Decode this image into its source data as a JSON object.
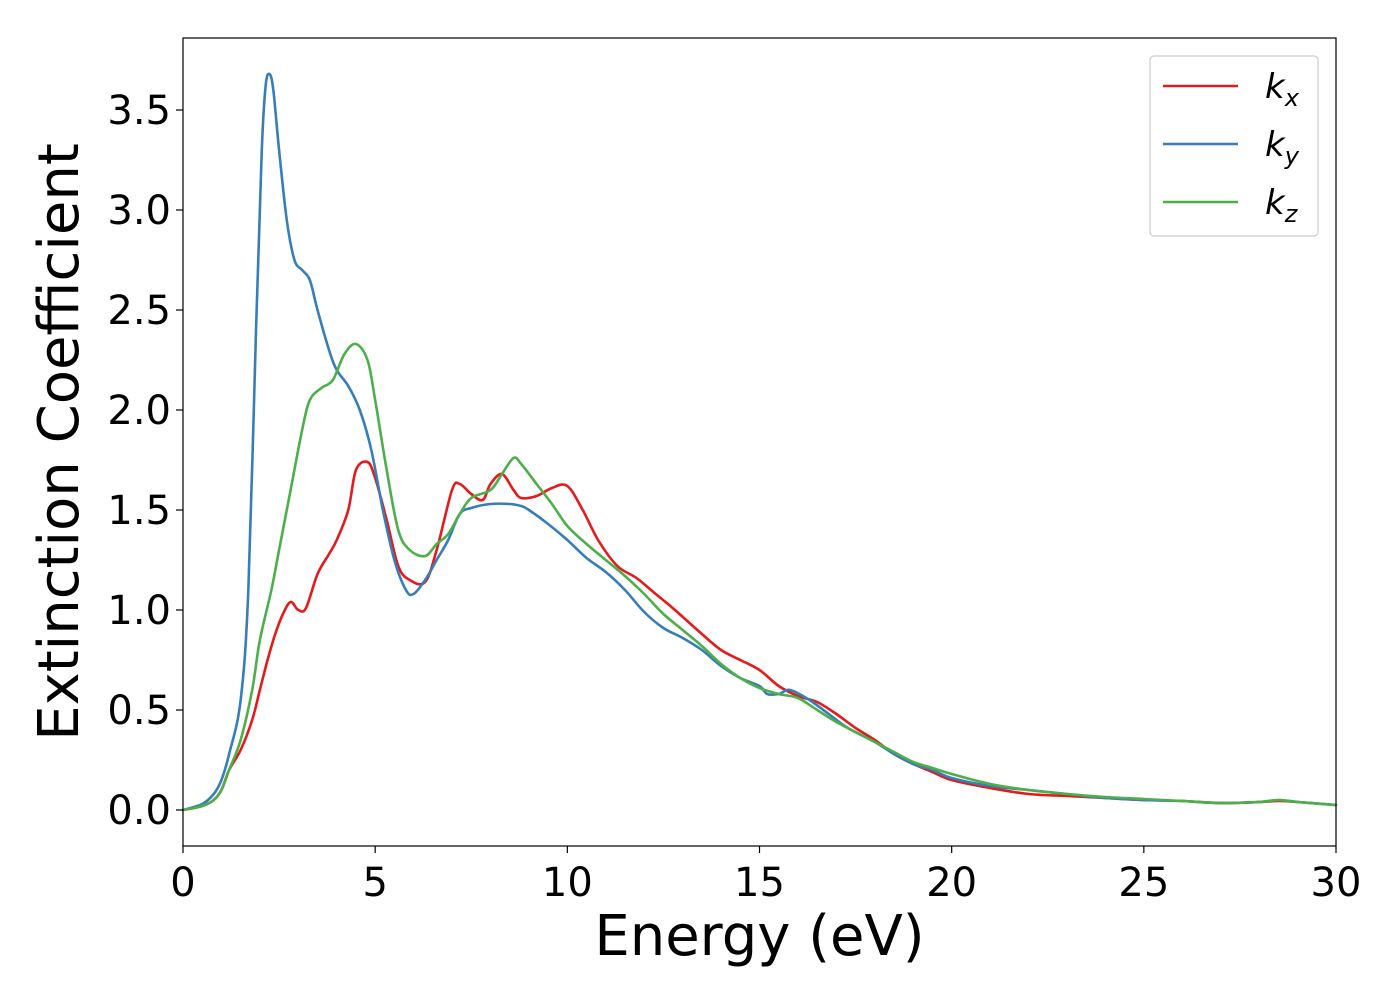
{
  "chart_data": {
    "type": "line",
    "title": "",
    "xlabel": "Energy (eV)",
    "ylabel": "Extinction Coefficient",
    "xlim": [
      0,
      30
    ],
    "ylim": [
      -0.18,
      3.86
    ],
    "xticks": [
      0,
      5,
      10,
      15,
      20,
      25,
      30
    ],
    "xtick_labels": [
      "0",
      "5",
      "10",
      "15",
      "20",
      "25",
      "30"
    ],
    "yticks": [
      0.0,
      0.5,
      1.0,
      1.5,
      2.0,
      2.5,
      3.0,
      3.5
    ],
    "ytick_labels": [
      "0.0",
      "0.5",
      "1.0",
      "1.5",
      "2.0",
      "2.5",
      "3.0",
      "3.5"
    ],
    "grid": false,
    "legend_position": "top-right",
    "series": [
      {
        "name": "k_x",
        "label_main": "k",
        "label_sub": "x",
        "color": "#e41a1c",
        "x": [
          0,
          0.5,
          0.8,
          1.0,
          1.2,
          1.5,
          1.8,
          2.0,
          2.2,
          2.4,
          2.6,
          2.8,
          3.0,
          3.2,
          3.5,
          3.8,
          4.0,
          4.3,
          4.5,
          4.8,
          5.0,
          5.3,
          5.6,
          5.9,
          6.3,
          6.6,
          7.0,
          7.2,
          7.5,
          7.8,
          8.0,
          8.3,
          8.6,
          8.8,
          9.2,
          9.6,
          10.0,
          10.4,
          10.8,
          11.3,
          11.8,
          12.3,
          12.8,
          13.5,
          14.0,
          14.5,
          15.0,
          15.5,
          16.0,
          16.5,
          17.0,
          17.5,
          18.0,
          18.5,
          19.0,
          19.5,
          20.0,
          21.0,
          22.0,
          23.0,
          24.0,
          25.0,
          26.0,
          27.0,
          28.0,
          28.5,
          29.0,
          30.0
        ],
        "y": [
          0.0,
          0.02,
          0.05,
          0.1,
          0.2,
          0.3,
          0.45,
          0.6,
          0.75,
          0.88,
          0.98,
          1.04,
          1.0,
          1.01,
          1.18,
          1.28,
          1.35,
          1.5,
          1.7,
          1.74,
          1.66,
          1.45,
          1.22,
          1.15,
          1.14,
          1.3,
          1.6,
          1.63,
          1.58,
          1.55,
          1.63,
          1.68,
          1.6,
          1.56,
          1.57,
          1.61,
          1.62,
          1.5,
          1.35,
          1.22,
          1.16,
          1.08,
          1.0,
          0.88,
          0.8,
          0.75,
          0.7,
          0.62,
          0.57,
          0.54,
          0.48,
          0.41,
          0.35,
          0.28,
          0.23,
          0.19,
          0.15,
          0.11,
          0.08,
          0.07,
          0.06,
          0.05,
          0.045,
          0.035,
          0.04,
          0.045,
          0.04,
          0.025
        ]
      },
      {
        "name": "k_y",
        "label_main": "k",
        "label_sub": "y",
        "color": "#377eb8",
        "x": [
          0,
          0.5,
          0.8,
          1.0,
          1.2,
          1.5,
          1.7,
          1.9,
          2.05,
          2.15,
          2.25,
          2.35,
          2.5,
          2.7,
          2.9,
          3.1,
          3.3,
          3.5,
          3.8,
          4.0,
          4.3,
          4.6,
          4.9,
          5.2,
          5.5,
          5.8,
          6.0,
          6.3,
          6.6,
          6.9,
          7.2,
          7.5,
          8.0,
          8.5,
          8.8,
          9.0,
          9.5,
          10.0,
          10.5,
          11.0,
          11.5,
          12.0,
          12.5,
          13.0,
          13.5,
          14.0,
          14.5,
          15.0,
          15.2,
          15.5,
          15.8,
          16.3,
          16.8,
          17.3,
          18.0,
          18.5,
          19.0,
          19.5,
          20.0,
          21.0,
          22.0,
          23.0,
          24.0,
          25.0,
          26.0,
          27.0,
          28.0,
          28.5,
          29.0,
          30.0
        ],
        "y": [
          0.0,
          0.03,
          0.08,
          0.15,
          0.28,
          0.55,
          1.1,
          2.4,
          3.3,
          3.62,
          3.68,
          3.6,
          3.3,
          2.95,
          2.75,
          2.7,
          2.65,
          2.5,
          2.3,
          2.2,
          2.12,
          2.0,
          1.8,
          1.5,
          1.25,
          1.1,
          1.08,
          1.15,
          1.25,
          1.35,
          1.48,
          1.51,
          1.53,
          1.53,
          1.52,
          1.5,
          1.43,
          1.35,
          1.26,
          1.19,
          1.1,
          0.99,
          0.91,
          0.86,
          0.8,
          0.72,
          0.66,
          0.62,
          0.58,
          0.58,
          0.6,
          0.55,
          0.48,
          0.41,
          0.34,
          0.28,
          0.23,
          0.2,
          0.16,
          0.12,
          0.1,
          0.08,
          0.06,
          0.05,
          0.045,
          0.035,
          0.04,
          0.05,
          0.04,
          0.025
        ]
      },
      {
        "name": "k_z",
        "label_main": "k",
        "label_sub": "z",
        "color": "#4daf4a",
        "x": [
          0,
          0.5,
          0.8,
          1.0,
          1.2,
          1.5,
          1.8,
          2.0,
          2.3,
          2.5,
          2.8,
          3.1,
          3.3,
          3.6,
          3.9,
          4.2,
          4.5,
          4.8,
          5.0,
          5.3,
          5.6,
          5.9,
          6.3,
          6.6,
          6.9,
          7.2,
          7.5,
          8.0,
          8.3,
          8.6,
          8.8,
          9.2,
          9.6,
          10.0,
          10.5,
          11.0,
          11.5,
          12.0,
          12.5,
          13.0,
          13.5,
          14.0,
          14.5,
          15.0,
          15.5,
          16.0,
          16.5,
          17.0,
          17.5,
          18.0,
          18.5,
          19.0,
          19.5,
          20.0,
          21.0,
          22.0,
          23.0,
          24.0,
          25.0,
          26.0,
          27.0,
          28.0,
          28.5,
          29.0,
          30.0
        ],
        "y": [
          0.0,
          0.02,
          0.05,
          0.1,
          0.2,
          0.35,
          0.6,
          0.85,
          1.1,
          1.3,
          1.6,
          1.9,
          2.05,
          2.11,
          2.15,
          2.28,
          2.33,
          2.25,
          2.05,
          1.7,
          1.4,
          1.3,
          1.27,
          1.33,
          1.38,
          1.48,
          1.56,
          1.6,
          1.68,
          1.76,
          1.73,
          1.63,
          1.53,
          1.42,
          1.33,
          1.25,
          1.17,
          1.08,
          0.98,
          0.9,
          0.82,
          0.73,
          0.66,
          0.61,
          0.58,
          0.56,
          0.5,
          0.44,
          0.39,
          0.34,
          0.29,
          0.24,
          0.21,
          0.18,
          0.13,
          0.1,
          0.08,
          0.065,
          0.055,
          0.045,
          0.035,
          0.04,
          0.05,
          0.04,
          0.025
        ]
      }
    ]
  }
}
